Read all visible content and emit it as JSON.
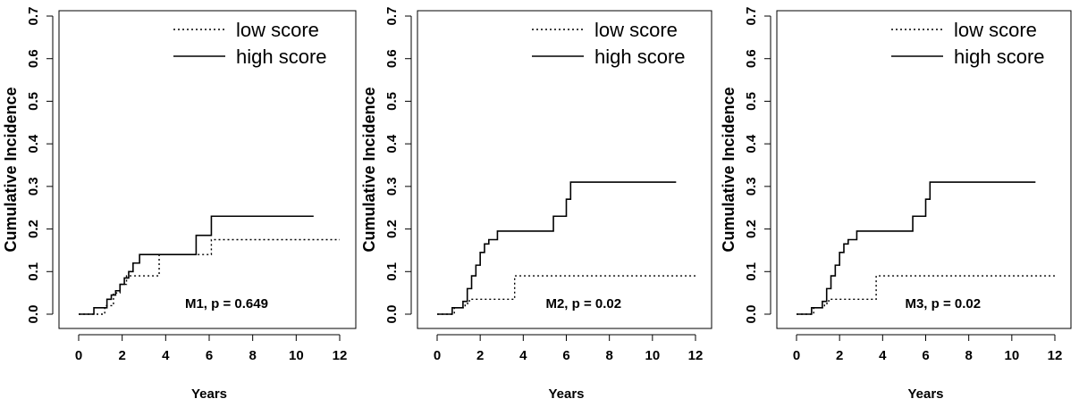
{
  "chart_data": [
    {
      "type": "line",
      "annotation": "M1, p = 0.649",
      "xlabel": "Years",
      "ylabel": "Cumulative Incidence",
      "xlim": [
        0,
        12
      ],
      "ylim": [
        0,
        0.7
      ],
      "xticks": [
        0,
        2,
        4,
        6,
        8,
        10,
        12
      ],
      "yticks": [
        0.0,
        0.1,
        0.2,
        0.3,
        0.4,
        0.5,
        0.6,
        0.7
      ],
      "legend_position": "top-right",
      "grid": false,
      "series": [
        {
          "name": "low score",
          "style": "dotted",
          "x": [
            0,
            1.2,
            1.6,
            1.9,
            2.2,
            2.5,
            3.7,
            4.3,
            6.1,
            12.0
          ],
          "y": [
            0,
            0.02,
            0.05,
            0.07,
            0.09,
            0.09,
            0.14,
            0.14,
            0.175,
            0.175
          ]
        },
        {
          "name": "high score",
          "style": "solid",
          "x": [
            0,
            0.7,
            1.3,
            1.5,
            1.7,
            1.9,
            2.1,
            2.3,
            2.5,
            2.8,
            5.3,
            5.4,
            6.1,
            10.8
          ],
          "y": [
            0,
            0.015,
            0.035,
            0.045,
            0.055,
            0.07,
            0.085,
            0.1,
            0.12,
            0.14,
            0.14,
            0.185,
            0.23,
            0.23
          ]
        }
      ]
    },
    {
      "type": "line",
      "annotation": "M2, p = 0.02",
      "xlabel": "Years",
      "ylabel": "Cumulative Incidence",
      "xlim": [
        0,
        12
      ],
      "ylim": [
        0,
        0.7
      ],
      "xticks": [
        0,
        2,
        4,
        6,
        8,
        10,
        12
      ],
      "yticks": [
        0.0,
        0.1,
        0.2,
        0.3,
        0.4,
        0.5,
        0.6,
        0.7
      ],
      "legend_position": "top-right",
      "grid": false,
      "series": [
        {
          "name": "low score",
          "style": "dotted",
          "x": [
            0,
            0.8,
            1.3,
            1.5,
            3.5,
            3.6,
            12.0
          ],
          "y": [
            0,
            0.015,
            0.025,
            0.035,
            0.035,
            0.09,
            0.09
          ]
        },
        {
          "name": "high score",
          "style": "solid",
          "x": [
            0,
            0.7,
            1.2,
            1.4,
            1.6,
            1.8,
            2.0,
            2.2,
            2.4,
            2.8,
            5.3,
            5.4,
            6.0,
            6.2,
            11.1
          ],
          "y": [
            0,
            0.015,
            0.03,
            0.06,
            0.09,
            0.115,
            0.145,
            0.165,
            0.175,
            0.195,
            0.195,
            0.23,
            0.27,
            0.31,
            0.31
          ]
        }
      ]
    },
    {
      "type": "line",
      "annotation": "M3, p = 0.02",
      "xlabel": "Years",
      "ylabel": "Cumulative Incidence",
      "xlim": [
        0,
        12
      ],
      "ylim": [
        0,
        0.7
      ],
      "xticks": [
        0,
        2,
        4,
        6,
        8,
        10,
        12
      ],
      "yticks": [
        0.0,
        0.1,
        0.2,
        0.3,
        0.4,
        0.5,
        0.6,
        0.7
      ],
      "legend_position": "top-right",
      "grid": false,
      "series": [
        {
          "name": "low score",
          "style": "dotted",
          "x": [
            0,
            0.8,
            1.3,
            1.5,
            3.6,
            3.7,
            12.0
          ],
          "y": [
            0,
            0.015,
            0.025,
            0.035,
            0.035,
            0.09,
            0.09
          ]
        },
        {
          "name": "high score",
          "style": "solid",
          "x": [
            0,
            0.7,
            1.2,
            1.4,
            1.6,
            1.8,
            2.0,
            2.2,
            2.4,
            2.8,
            5.3,
            5.4,
            6.0,
            6.2,
            11.1
          ],
          "y": [
            0,
            0.015,
            0.03,
            0.06,
            0.09,
            0.115,
            0.145,
            0.165,
            0.175,
            0.195,
            0.195,
            0.23,
            0.27,
            0.31,
            0.31
          ]
        }
      ]
    }
  ]
}
